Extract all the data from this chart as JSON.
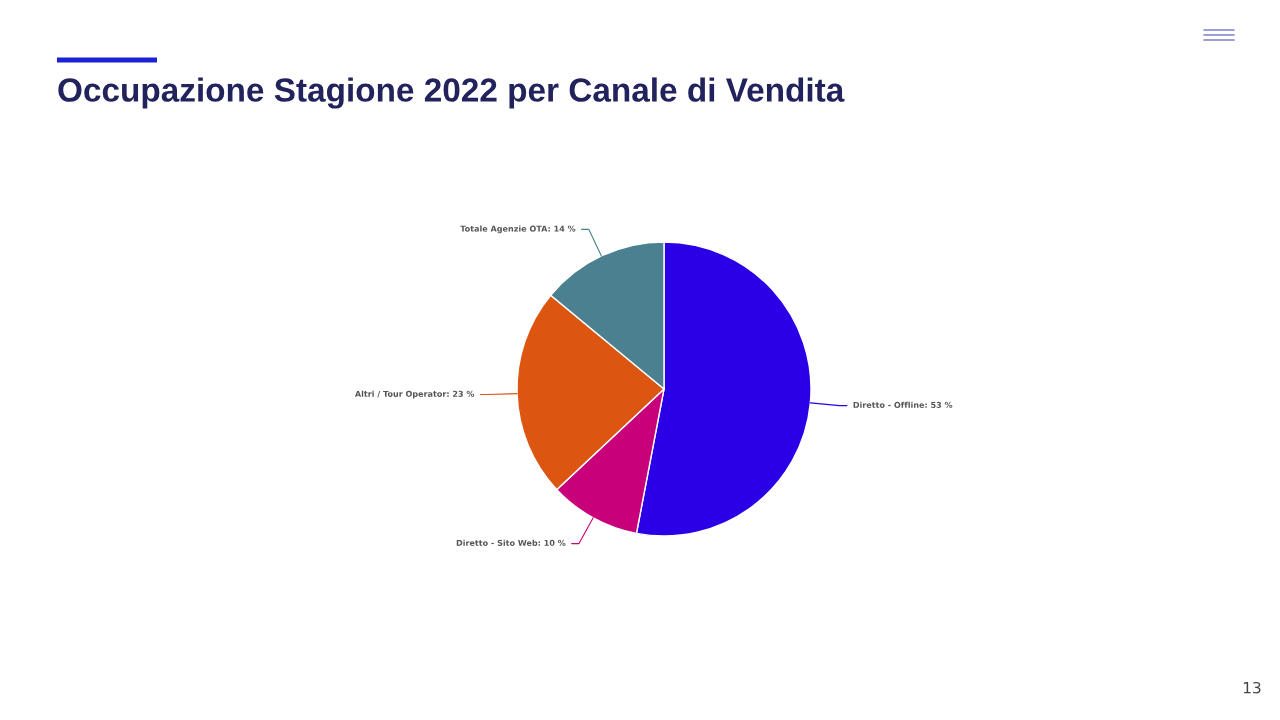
{
  "chart_data": {
    "type": "pie",
    "title": "Occupazione Stagione 2022 per Canale di Vendita",
    "categories": [
      "Diretto - Offline",
      "Diretto - Sito Web",
      "Altri / Tour Operator",
      "Totale Agenzie OTA"
    ],
    "values": [
      53,
      10,
      23,
      14
    ],
    "value_labels": [
      "53 %",
      "10 %",
      "23 %",
      "14 %"
    ],
    "colors": [
      "#2b00e6",
      "#c8007a",
      "#dc5511",
      "#4a8090"
    ],
    "annotations": [
      "13"
    ]
  }
}
